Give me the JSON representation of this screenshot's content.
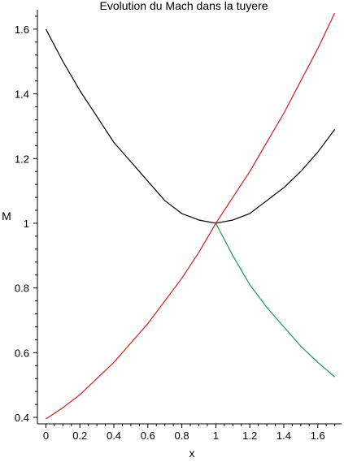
{
  "chart_data": {
    "type": "line",
    "title": "Evolution du Mach dans la tuyere",
    "xlabel": "x",
    "ylabel": "M",
    "xlim": [
      -0.05,
      1.74
    ],
    "ylim": [
      0.38,
      1.66
    ],
    "x_ticks": [
      0,
      0.2,
      0.4,
      0.6,
      0.8,
      1,
      1.2,
      1.4,
      1.6
    ],
    "x_tick_labels": [
      "0",
      "0.2",
      "0.4",
      "0.6",
      "0.8",
      "1",
      "1.2",
      "1.4",
      "1.6"
    ],
    "y_ticks": [
      0.4,
      0.6,
      0.8,
      1,
      1.2,
      1.4,
      1.6
    ],
    "y_tick_labels": [
      "0.4",
      "0.6",
      "0.8",
      "1",
      "1.2",
      "1.4",
      "1.6"
    ],
    "grid": false,
    "legend": "none",
    "series": [
      {
        "color": "#000000",
        "x": [
          0,
          0.1,
          0.2,
          0.3,
          0.4,
          0.5,
          0.6,
          0.7,
          0.8,
          0.9,
          1.0,
          1.1,
          1.2,
          1.3,
          1.4,
          1.5,
          1.6,
          1.7
        ],
        "y": [
          1.6,
          1.5,
          1.41,
          1.33,
          1.25,
          1.19,
          1.13,
          1.07,
          1.03,
          1.01,
          1.0,
          1.01,
          1.03,
          1.07,
          1.11,
          1.16,
          1.22,
          1.29
        ]
      },
      {
        "color": "#d41c1c",
        "x": [
          0,
          0.1,
          0.2,
          0.3,
          0.4,
          0.5,
          0.6,
          0.7,
          0.8,
          0.9,
          1.0,
          1.1,
          1.2,
          1.3,
          1.4,
          1.5,
          1.6,
          1.7
        ],
        "y": [
          0.395,
          0.43,
          0.47,
          0.52,
          0.57,
          0.63,
          0.69,
          0.76,
          0.83,
          0.91,
          1.0,
          1.08,
          1.16,
          1.25,
          1.34,
          1.44,
          1.54,
          1.65
        ]
      },
      {
        "color": "#1a9850",
        "x": [
          1.0,
          1.1,
          1.2,
          1.3,
          1.4,
          1.5,
          1.6,
          1.7
        ],
        "y": [
          1.0,
          0.9,
          0.81,
          0.74,
          0.68,
          0.62,
          0.57,
          0.525
        ]
      }
    ]
  }
}
